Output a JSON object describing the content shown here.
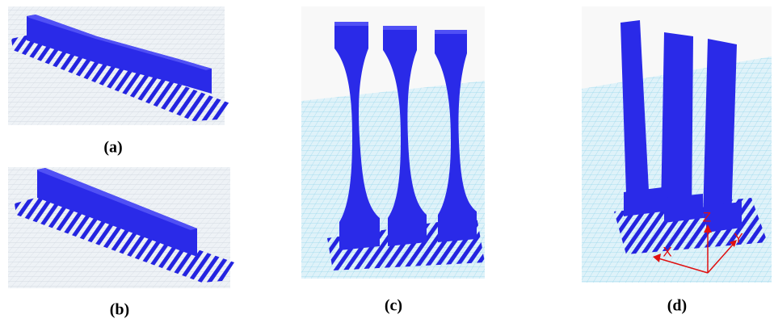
{
  "panels": [
    {
      "label": "(a)"
    },
    {
      "label": "(b)"
    },
    {
      "label": "(c)"
    },
    {
      "label": "(d)"
    }
  ],
  "axes": {
    "x": "X",
    "y": "Y",
    "z": "Z"
  }
}
